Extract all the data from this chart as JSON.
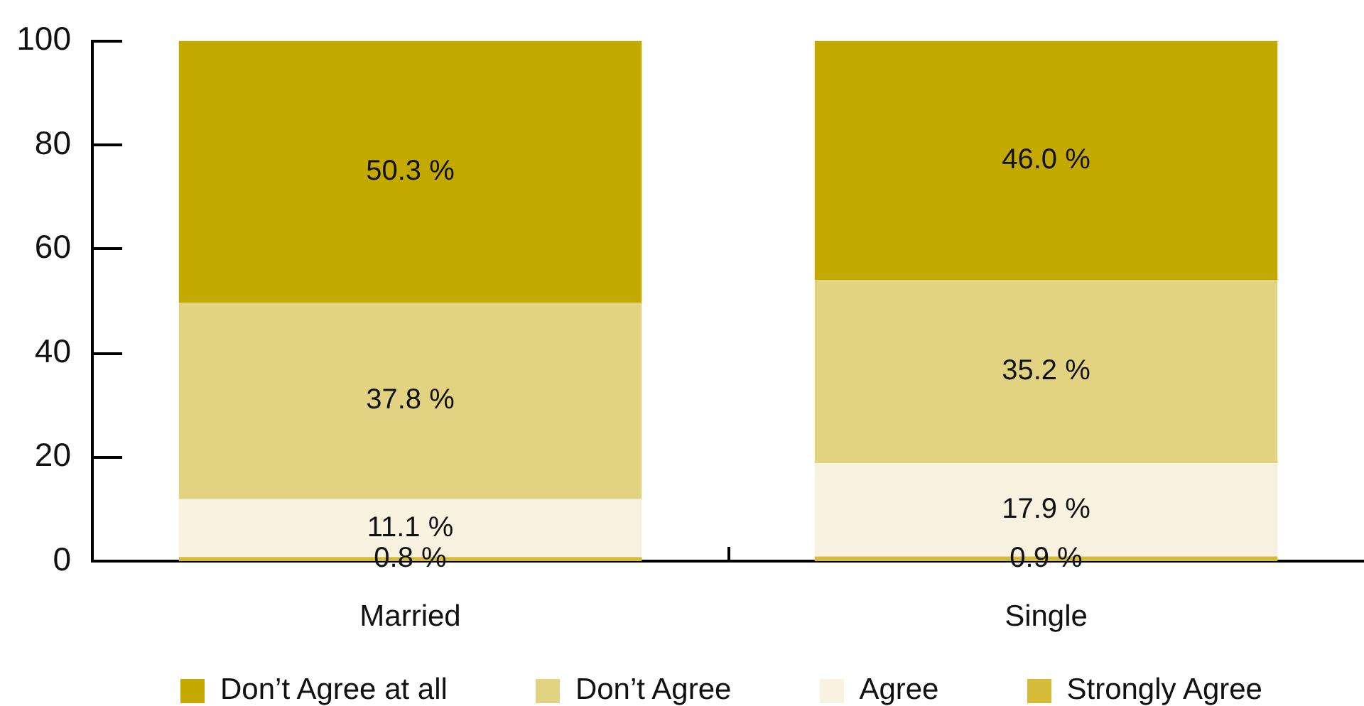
{
  "chart_data": {
    "type": "bar",
    "categories": [
      "Married",
      "Single"
    ],
    "stacked": true,
    "series": [
      {
        "name": "Strongly Agree",
        "color": "#d4bc3a",
        "values": [
          0.8,
          0.9
        ],
        "value_labels": [
          "0.8 %",
          "0.9 %"
        ]
      },
      {
        "name": "Agree",
        "color": "#f7f1df",
        "values": [
          11.1,
          17.9
        ],
        "value_labels": [
          "11.1 %",
          "17.9 %"
        ]
      },
      {
        "name": "Don’t Agree",
        "color": "#e2d382",
        "values": [
          37.8,
          35.2
        ],
        "value_labels": [
          "37.8 %",
          "35.2 %"
        ]
      },
      {
        "name": "Don’t Agree at all",
        "color": "#c4a900",
        "values": [
          50.3,
          46.0
        ],
        "value_labels": [
          "50.3 %",
          "46.0 %"
        ]
      }
    ],
    "ylim": [
      0,
      100
    ],
    "yticks": [
      0,
      20,
      40,
      60,
      80,
      100
    ],
    "grid": false,
    "legend": "bottom"
  }
}
